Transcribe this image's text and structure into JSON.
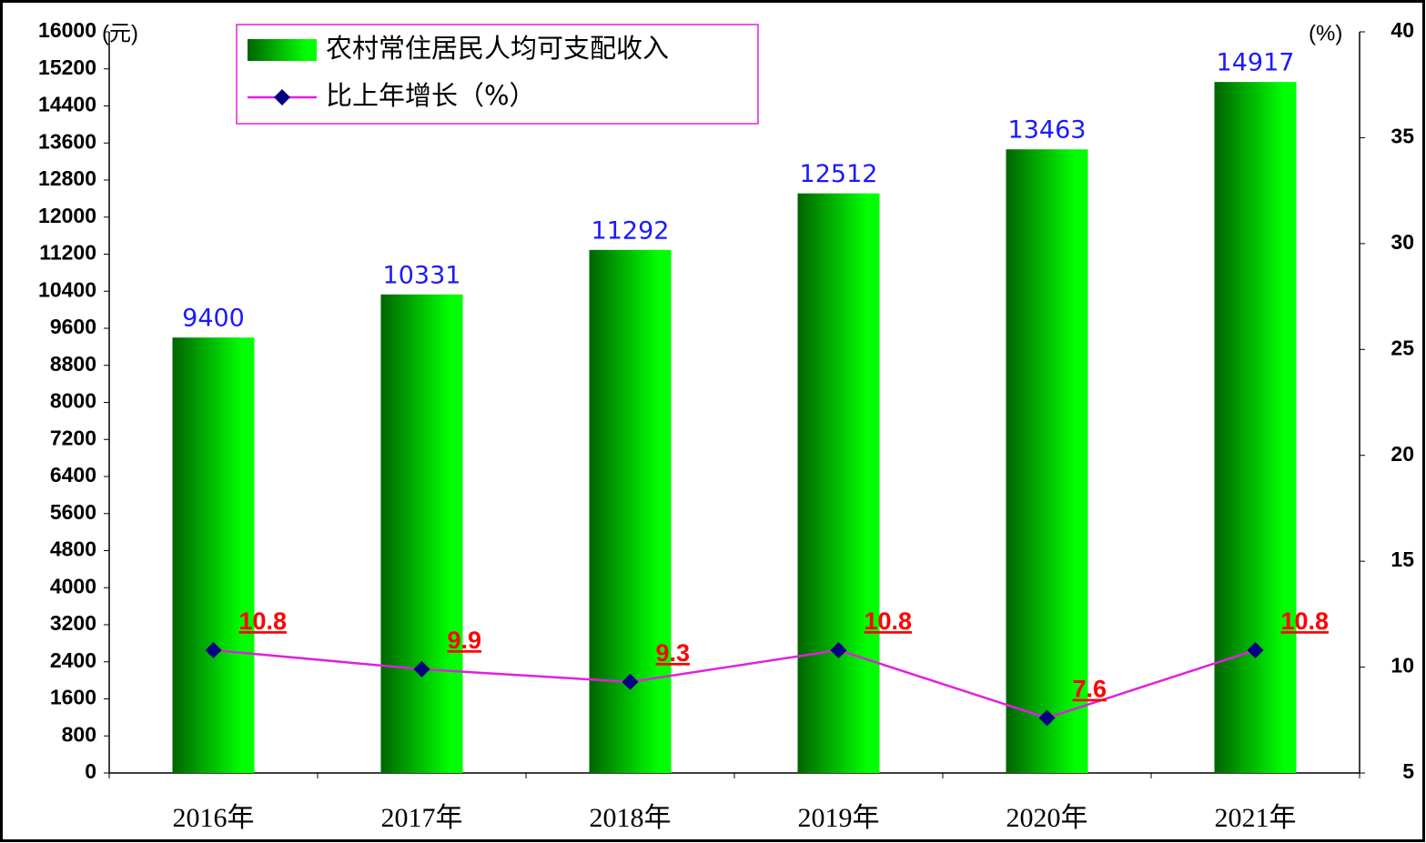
{
  "chart_data": {
    "type": "bar-line",
    "ylabel": "(元)",
    "y2label": "(%)",
    "categories": [
      "2016年",
      "2017年",
      "2018年",
      "2019年",
      "2020年",
      "2021年"
    ],
    "series": [
      {
        "name": "农村常住居民人均可支配收入",
        "type": "bar",
        "color": "#00ff00",
        "values": [
          9400,
          10331,
          11292,
          12512,
          13463,
          14917
        ]
      },
      {
        "name": "比上年增长（%）",
        "type": "line",
        "axis": "y2",
        "color": "#e020e0",
        "marker_color": "#000080",
        "values": [
          10.8,
          9.9,
          9.3,
          10.8,
          7.6,
          10.8
        ]
      }
    ],
    "ylim": [
      0,
      16000
    ],
    "yticks": [
      0,
      800,
      1600,
      2400,
      3200,
      4000,
      4800,
      5600,
      6400,
      7200,
      8000,
      8800,
      9600,
      10400,
      11200,
      12000,
      12800,
      13600,
      14400,
      15200,
      16000
    ],
    "y2lim": [
      5,
      40
    ],
    "y2ticks": [
      5,
      10,
      15,
      20,
      25,
      30,
      35,
      40
    ]
  }
}
